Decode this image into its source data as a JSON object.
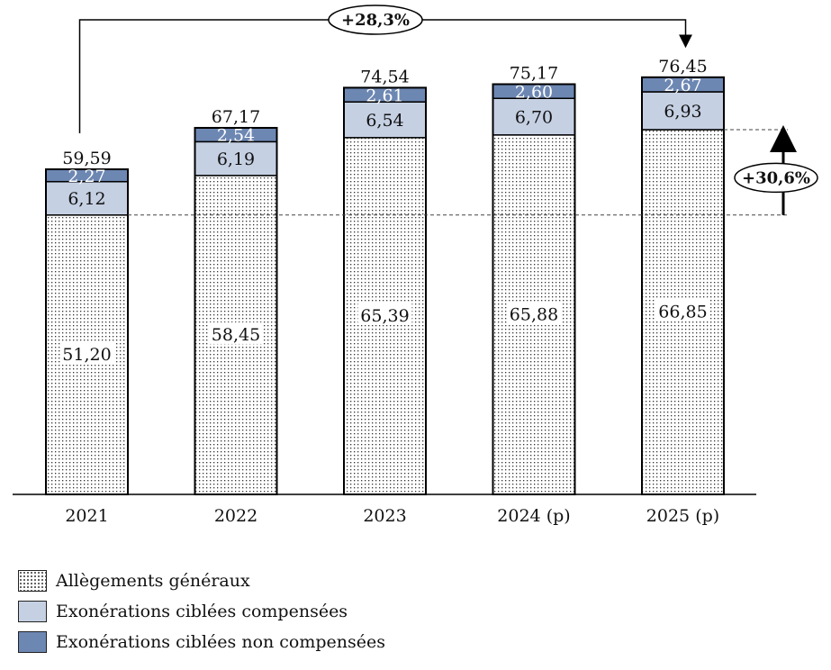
{
  "chart_data": {
    "type": "bar",
    "stacked": true,
    "categories": [
      "2021",
      "2022",
      "2023",
      "2024 (p)",
      "2025 (p)"
    ],
    "series": [
      {
        "name": "Allègements généraux",
        "values": [
          "51,20",
          "58,45",
          "65,39",
          "65,88",
          "66,85"
        ],
        "fill": "dots"
      },
      {
        "name": "Exonérations ciblées compensées",
        "values": [
          "6,12",
          "6,19",
          "6,54",
          "6,70",
          "6,93"
        ],
        "color": "#c5d0e3"
      },
      {
        "name": "Exonérations ciblées non compensées",
        "values": [
          "2,27",
          "2,54",
          "2,61",
          "2,60",
          "2,67"
        ],
        "color": "#6d87b3"
      }
    ],
    "totals": [
      "59,59",
      "67,17",
      "74,54",
      "75,17",
      "76,45"
    ],
    "ylim": [
      0,
      85
    ],
    "annotations": {
      "total_growth": "+28,3%",
      "general_growth": "+30,6%"
    },
    "grid": false,
    "legend_position": "bottom-left"
  }
}
